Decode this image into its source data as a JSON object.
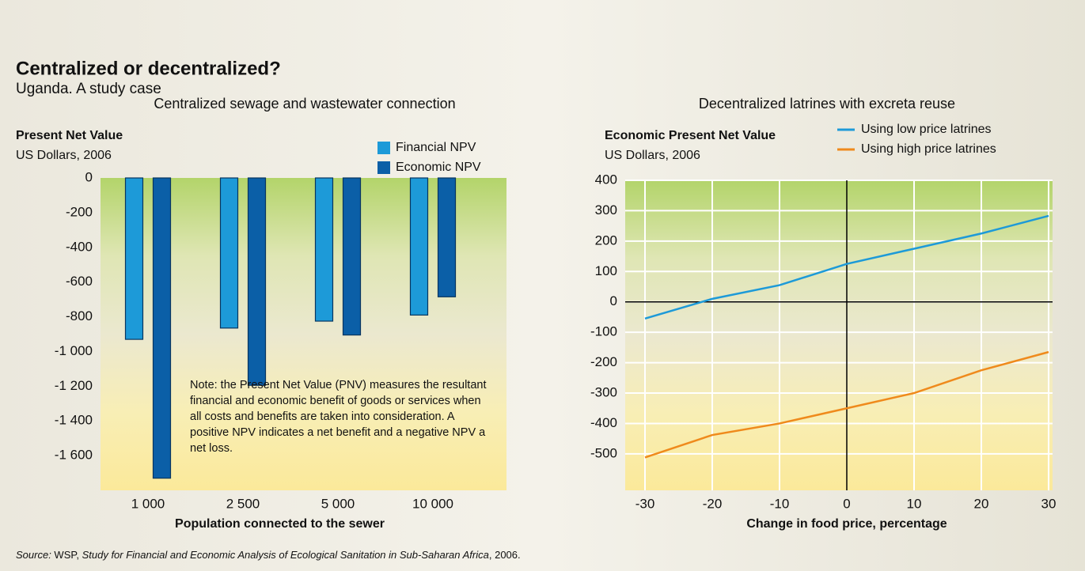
{
  "title": "Centralized or decentralized?",
  "subtitle": "Uganda. A study case",
  "source": [
    "Source: ",
    "WSP",
    ", ",
    "Study for Financial and Economic Analysis of Ecological Sanitation in Sub-Saharan Africa",
    ", 2006."
  ],
  "chart_data": [
    {
      "type": "bar",
      "title": "Centralized sewage and wastewater connection",
      "y_label": "Present Net Value",
      "y_unit": "US Dollars, 2006",
      "x_label": "Population connected to the sewer",
      "note": "Note: the Present Net Value (PNV) measures the resultant financial and economic benefit of goods or services when all costs and benefits are taken into consideration. A positive NPV indicates a net benefit and a negative NPV a net loss.",
      "categories": [
        "1 000",
        "2 500",
        "5 000",
        "10 000"
      ],
      "series": [
        {
          "name": "Financial NPV",
          "color": "#1d9ad8",
          "values": [
            -930,
            -865,
            -825,
            -790
          ]
        },
        {
          "name": "Economic NPV",
          "color": "#0b5fa7",
          "values": [
            -1730,
            -1195,
            -905,
            -685
          ]
        }
      ],
      "ylim": [
        -1800,
        0
      ],
      "yticks": [
        0,
        -200,
        -400,
        -600,
        -800,
        {
          "value": -1000,
          "label": "-1 000"
        },
        {
          "value": -1200,
          "label": "-1 200"
        },
        {
          "value": -1400,
          "label": "-1 400"
        },
        {
          "value": -1600,
          "label": "-1 600"
        }
      ],
      "grid": false
    },
    {
      "type": "line",
      "title": "Decentralized latrines with excreta reuse",
      "y_label": "Economic Present Net Value",
      "y_unit": "US Dollars, 2006",
      "x_label": "Change in food price, percentage",
      "x": [
        -30,
        -20,
        -10,
        0,
        10,
        20,
        30
      ],
      "series": [
        {
          "name": "Using low price latrines",
          "color": "#1d9ad8",
          "values": [
            -55,
            10,
            55,
            125,
            175,
            225,
            283
          ]
        },
        {
          "name": "Using high price latrines",
          "color": "#ef8a1c",
          "values": [
            -512,
            -438,
            -400,
            -350,
            -300,
            -225,
            -165
          ]
        }
      ],
      "xlim": [
        -30,
        30
      ],
      "xticks": [
        -30,
        -20,
        -10,
        0,
        10,
        20,
        30
      ],
      "ylim": [
        -620,
        400
      ],
      "yticks": [
        400,
        300,
        200,
        100,
        0,
        -100,
        -200,
        -300,
        -400,
        -500
      ],
      "grid": true
    }
  ]
}
